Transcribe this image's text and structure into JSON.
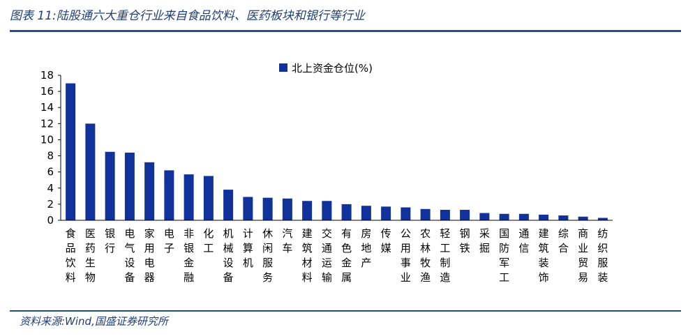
{
  "header": {
    "title": "图表 11:陆股通六大重仓行业来自食品饮料、医药板块和银行等行业"
  },
  "footer": {
    "source": "资料来源:Wind,国盛证券研究所"
  },
  "colors": {
    "bar": "#10329a",
    "rule": "#1f4e8c",
    "title": "#1f3e78"
  },
  "chart_data": {
    "type": "bar",
    "categories": [
      "食品饮料",
      "医药生物",
      "银行",
      "电气设备",
      "家用电器",
      "电子",
      "非银金融",
      "化工",
      "机械设备",
      "计算机",
      "休闲服务",
      "汽车",
      "建筑材料",
      "交通运输",
      "有色金属",
      "房地产",
      "传媒",
      "公用事业",
      "农林牧渔",
      "轻工制造",
      "钢铁",
      "采掘",
      "国防军工",
      "通信",
      "建筑装饰",
      "综合",
      "商业贸易",
      "纺织服装"
    ],
    "series": [
      {
        "name": "北上资金仓位(%)",
        "values": [
          17.0,
          12.0,
          8.5,
          8.4,
          7.2,
          6.2,
          5.7,
          5.5,
          3.8,
          2.9,
          2.8,
          2.7,
          2.4,
          2.4,
          2.0,
          1.8,
          1.7,
          1.6,
          1.4,
          1.3,
          1.3,
          0.9,
          0.8,
          0.8,
          0.7,
          0.6,
          0.45,
          0.3
        ]
      }
    ],
    "ylim": [
      0,
      18
    ],
    "yticks": [
      0,
      2,
      4,
      6,
      8,
      10,
      12,
      14,
      16,
      18
    ],
    "legend": "top-center",
    "grid": false
  }
}
